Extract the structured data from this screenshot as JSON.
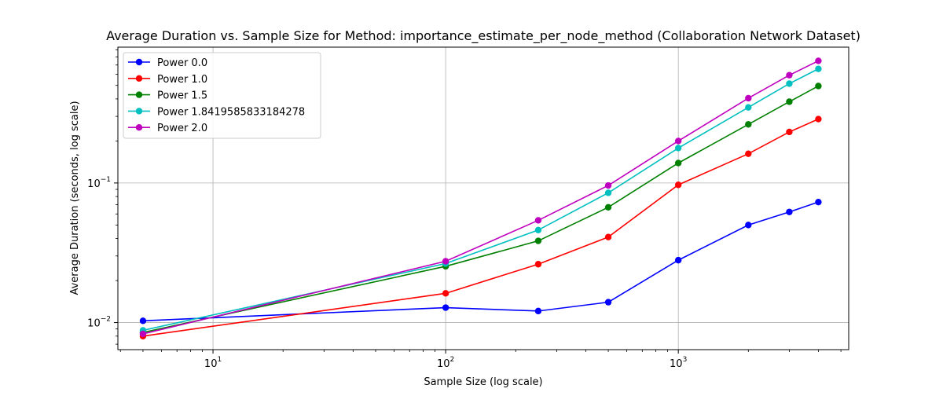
{
  "chart_data": {
    "type": "line",
    "title": "Average Duration vs. Sample Size for Method: importance_estimate_per_node_method (Collaboration Network Dataset)",
    "xlabel": "Sample Size (log scale)",
    "ylabel": "Average Duration (seconds, log scale)",
    "xscale": "log",
    "yscale": "log",
    "xlim": [
      3.9,
      5400
    ],
    "ylim": [
      0.0064,
      0.94
    ],
    "grid": true,
    "legend_position": "top-left",
    "x_ticks": [
      {
        "value": 10,
        "base": "10",
        "exp": "1"
      },
      {
        "value": 100,
        "base": "10",
        "exp": "2"
      },
      {
        "value": 1000,
        "base": "10",
        "exp": "3"
      }
    ],
    "y_ticks": [
      {
        "value": 0.01,
        "base": "10",
        "exp": "−2"
      },
      {
        "value": 0.1,
        "base": "10",
        "exp": "−1"
      }
    ],
    "x": [
      5,
      100,
      250,
      500,
      1000,
      2000,
      3000,
      4000
    ],
    "series": [
      {
        "name": "Power 0.0",
        "color": "#0000ff",
        "values": [
          0.0103,
          0.0128,
          0.0121,
          0.014,
          0.028,
          0.05,
          0.062,
          0.073
        ]
      },
      {
        "name": "Power 1.0",
        "color": "#ff0000",
        "values": [
          0.008,
          0.0162,
          0.0262,
          0.041,
          0.097,
          0.162,
          0.232,
          0.287
        ]
      },
      {
        "name": "Power 1.5",
        "color": "#008000",
        "values": [
          0.0085,
          0.0253,
          0.0385,
          0.067,
          0.139,
          0.263,
          0.382,
          0.495
        ]
      },
      {
        "name": "Power 1.8419585833184278",
        "color": "#00bfbf",
        "values": [
          0.0088,
          0.0265,
          0.046,
          0.085,
          0.178,
          0.348,
          0.515,
          0.657
        ]
      },
      {
        "name": "Power 2.0",
        "color": "#bf00bf",
        "values": [
          0.0083,
          0.0275,
          0.054,
          0.096,
          0.2,
          0.405,
          0.592,
          0.75
        ]
      }
    ]
  }
}
